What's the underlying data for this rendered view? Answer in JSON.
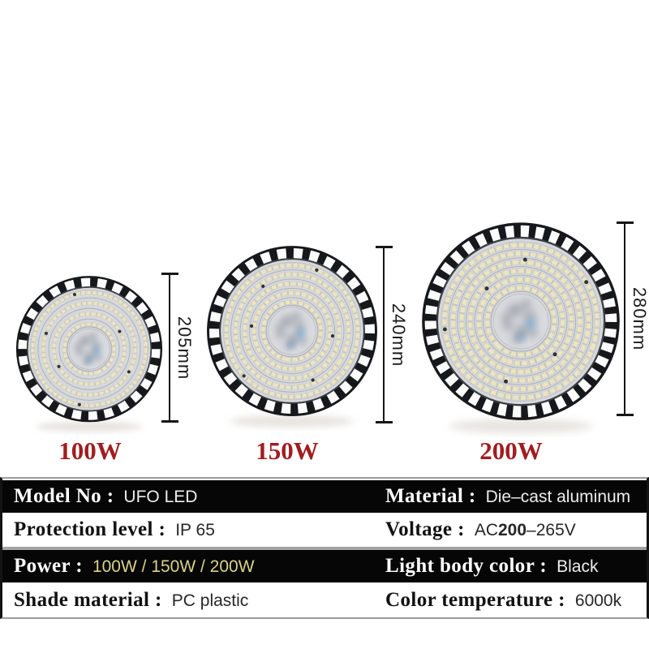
{
  "title": "UFO LED high bay light specification sheet",
  "colors": {
    "watt_label": "#a01d20",
    "power_value": "#d9d28a",
    "dim_text": "#1c1c1c",
    "table_dark_row": "#060606",
    "lamp_body": "Black"
  },
  "lamps": [
    {
      "watt_label": "100W",
      "height_label": "205mm"
    },
    {
      "watt_label": "150W",
      "height_label": "240mm"
    },
    {
      "watt_label": "200W",
      "height_label": "280mm"
    }
  ],
  "spec": {
    "rows": [
      {
        "left": {
          "label": "Model No :",
          "value": "UFO LED"
        },
        "right": {
          "label": "Material :",
          "value": "Die–cast aluminum"
        }
      },
      {
        "left": {
          "label": "Protection level :",
          "value": "IP 65"
        },
        "right": {
          "label": "Voltage :",
          "value_parts": [
            "AC",
            "200",
            "–265V"
          ]
        }
      },
      {
        "left": {
          "label": "Power :",
          "value": "100W / 150W / 200W"
        },
        "right": {
          "label": "Light body color :",
          "value": "Black"
        }
      },
      {
        "left": {
          "label": "Shade material :",
          "value": "PC plastic"
        },
        "right": {
          "label": "Color temperature :",
          "value": "6000k"
        }
      }
    ]
  }
}
